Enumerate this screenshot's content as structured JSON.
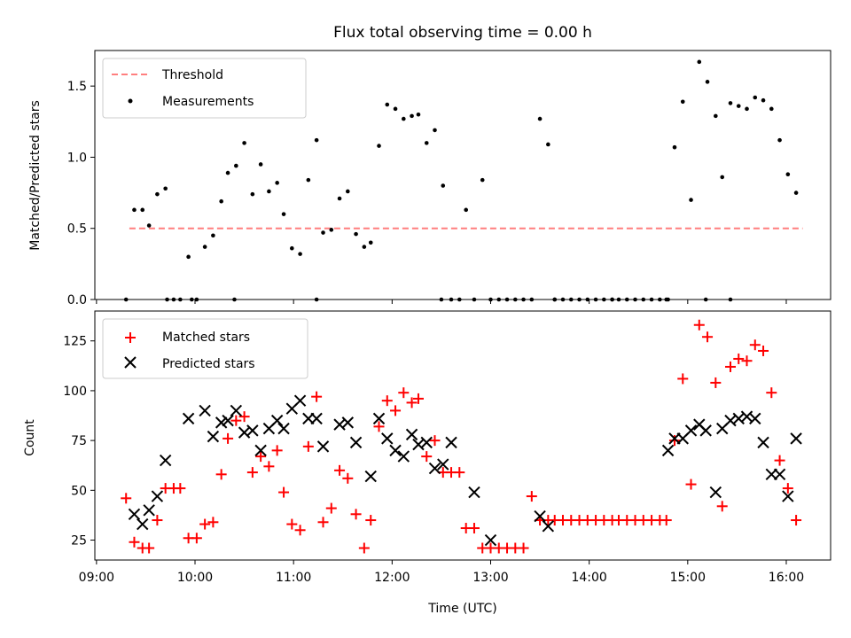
{
  "chart_data": [
    {
      "type": "scatter",
      "title": "Flux total observing time = 0.00 h",
      "xlabel": "",
      "ylabel": "Matched/Predicted stars",
      "ylim": [
        0,
        1.75
      ],
      "yticks": [
        "0.0",
        "0.5",
        "1.0",
        "1.5"
      ],
      "legend_position": "top-left",
      "threshold": {
        "name": "Threshold",
        "value": 0.5,
        "x_start": "09:20",
        "x_end": "16:10",
        "color": "#ff7f7f"
      },
      "series": [
        {
          "name": "Measurements",
          "color": "#000000",
          "marker": "dot",
          "x": [
            "09:18",
            "09:23",
            "09:28",
            "09:32",
            "09:37",
            "09:42",
            "09:47",
            "09:51",
            "09:56",
            "10:01",
            "10:06",
            "10:11",
            "10:16",
            "10:20",
            "10:25",
            "10:30",
            "10:35",
            "10:40",
            "10:45",
            "10:50",
            "10:54",
            "10:59",
            "11:04",
            "11:09",
            "11:14",
            "11:18",
            "11:23",
            "11:28",
            "11:33",
            "11:38",
            "11:43",
            "11:47",
            "11:52",
            "11:57",
            "12:02",
            "12:07",
            "12:12",
            "12:16",
            "12:21",
            "12:26",
            "12:31",
            "12:36",
            "12:41",
            "12:45",
            "12:50",
            "12:55",
            "13:00",
            "13:05",
            "13:10",
            "13:15",
            "13:20",
            "13:25",
            "13:30",
            "13:35",
            "13:39",
            "13:44",
            "13:49",
            "13:54",
            "13:59",
            "14:04",
            "14:09",
            "14:14",
            "14:18",
            "14:23",
            "14:28",
            "14:33",
            "14:38",
            "14:43",
            "14:47",
            "14:52",
            "14:57",
            "15:02",
            "15:07",
            "15:12",
            "15:17",
            "15:21",
            "15:26",
            "15:31",
            "15:36",
            "15:41",
            "15:46",
            "15:51",
            "15:56",
            "16:01",
            "16:06",
            "09:43",
            "09:58",
            "10:24",
            "11:14",
            "12:30",
            "13:39",
            "14:14",
            "14:48",
            "15:11",
            "15:26"
          ],
          "y": [
            0.0,
            0.63,
            0.63,
            0.52,
            0.74,
            0.78,
            0.0,
            0.0,
            0.3,
            0.0,
            0.37,
            0.45,
            0.69,
            0.89,
            0.94,
            1.1,
            0.74,
            0.95,
            0.76,
            0.82,
            0.6,
            0.36,
            0.32,
            0.84,
            1.12,
            0.47,
            0.49,
            0.71,
            0.76,
            0.46,
            0.37,
            0.4,
            1.08,
            1.37,
            1.34,
            1.27,
            1.29,
            1.3,
            1.1,
            1.19,
            0.8,
            0.0,
            0.0,
            0.63,
            0.0,
            0.84,
            0.0,
            0.0,
            0.0,
            0.0,
            0.0,
            0.0,
            1.27,
            1.09,
            0.0,
            0.0,
            0.0,
            0.0,
            0.0,
            0.0,
            0.0,
            0.0,
            0.0,
            0.0,
            0.0,
            0.0,
            0.0,
            0.0,
            0.0,
            1.07,
            1.39,
            0.7,
            1.67,
            1.53,
            1.29,
            0.86,
            1.38,
            1.36,
            1.34,
            1.42,
            1.4,
            1.34,
            1.12,
            0.88,
            0.75,
            0.0,
            0.0,
            0.0,
            0.0,
            0.0,
            0.0,
            0.0,
            0.0,
            0.0,
            0.0
          ]
        }
      ]
    },
    {
      "type": "scatter",
      "title": "",
      "xlabel": "Time (UTC)",
      "ylabel": "Count",
      "ylim": [
        15,
        140
      ],
      "yticks": [
        "25",
        "50",
        "75",
        "100",
        "125"
      ],
      "xlim": [
        "08:59",
        "16:27"
      ],
      "xticks": [
        "09:00",
        "10:00",
        "11:00",
        "12:00",
        "13:00",
        "14:00",
        "15:00",
        "16:00"
      ],
      "legend_position": "top-left",
      "series": [
        {
          "name": "Matched stars",
          "color": "#ff0000",
          "marker": "plus",
          "x": [
            "09:18",
            "09:23",
            "09:28",
            "09:32",
            "09:37",
            "09:42",
            "09:47",
            "09:51",
            "09:56",
            "10:01",
            "10:06",
            "10:11",
            "10:16",
            "10:20",
            "10:25",
            "10:30",
            "10:35",
            "10:40",
            "10:45",
            "10:50",
            "10:54",
            "10:59",
            "11:04",
            "11:09",
            "11:14",
            "11:18",
            "11:23",
            "11:28",
            "11:33",
            "11:38",
            "11:43",
            "11:47",
            "11:52",
            "11:57",
            "12:02",
            "12:07",
            "12:12",
            "12:16",
            "12:21",
            "12:26",
            "12:31",
            "12:36",
            "12:41",
            "12:45",
            "12:50",
            "12:55",
            "13:00",
            "13:05",
            "13:10",
            "13:15",
            "13:20",
            "13:25",
            "13:30",
            "13:35",
            "13:39",
            "13:44",
            "13:49",
            "13:54",
            "13:59",
            "14:04",
            "14:09",
            "14:14",
            "14:18",
            "14:23",
            "14:28",
            "14:33",
            "14:38",
            "14:43",
            "14:47",
            "14:52",
            "14:57",
            "15:02",
            "15:07",
            "15:12",
            "15:17",
            "15:21",
            "15:26",
            "15:31",
            "15:36",
            "15:41",
            "15:46",
            "15:51",
            "15:56",
            "16:01",
            "16:06"
          ],
          "y": [
            46,
            24,
            21,
            21,
            35,
            51,
            51,
            51,
            26,
            26,
            33,
            34,
            58,
            76,
            85,
            87,
            59,
            67,
            62,
            70,
            49,
            33,
            30,
            72,
            97,
            34,
            41,
            60,
            56,
            38,
            21,
            35,
            82,
            95,
            90,
            99,
            94,
            96,
            67,
            75,
            59,
            59,
            59,
            31,
            31,
            21,
            21,
            21,
            21,
            21,
            21,
            47,
            35,
            35,
            35,
            35,
            35,
            35,
            35,
            35,
            35,
            35,
            35,
            35,
            35,
            35,
            35,
            35,
            35,
            75,
            106,
            53,
            133,
            127,
            104,
            42,
            112,
            116,
            115,
            123,
            120,
            99,
            65,
            51,
            35
          ]
        },
        {
          "name": "Predicted stars",
          "color": "#000000",
          "marker": "x",
          "x": [
            "09:23",
            "09:28",
            "09:32",
            "09:37",
            "09:42",
            "09:56",
            "10:06",
            "10:11",
            "10:16",
            "10:20",
            "10:25",
            "10:30",
            "10:35",
            "10:40",
            "10:45",
            "10:50",
            "10:54",
            "10:59",
            "11:04",
            "11:09",
            "11:14",
            "11:18",
            "11:28",
            "11:33",
            "11:38",
            "11:47",
            "11:52",
            "11:57",
            "12:02",
            "12:07",
            "12:12",
            "12:16",
            "12:21",
            "12:26",
            "12:31",
            "12:36",
            "12:50",
            "13:00",
            "13:30",
            "13:35",
            "14:48",
            "14:52",
            "14:57",
            "15:02",
            "15:07",
            "15:11",
            "15:17",
            "15:21",
            "15:26",
            "15:31",
            "15:36",
            "15:41",
            "15:46",
            "15:51",
            "15:56",
            "16:01",
            "16:06"
          ],
          "y": [
            38,
            33,
            40,
            47,
            65,
            86,
            90,
            77,
            84,
            85,
            90,
            79,
            80,
            70,
            81,
            85,
            81,
            91,
            95,
            86,
            86,
            72,
            83,
            84,
            74,
            57,
            86,
            76,
            70,
            67,
            78,
            73,
            74,
            61,
            63,
            74,
            49,
            25,
            37,
            32,
            70,
            76,
            76,
            80,
            83,
            80,
            49,
            81,
            85,
            86,
            87,
            86,
            74,
            58,
            58,
            47,
            76
          ]
        }
      ]
    }
  ]
}
